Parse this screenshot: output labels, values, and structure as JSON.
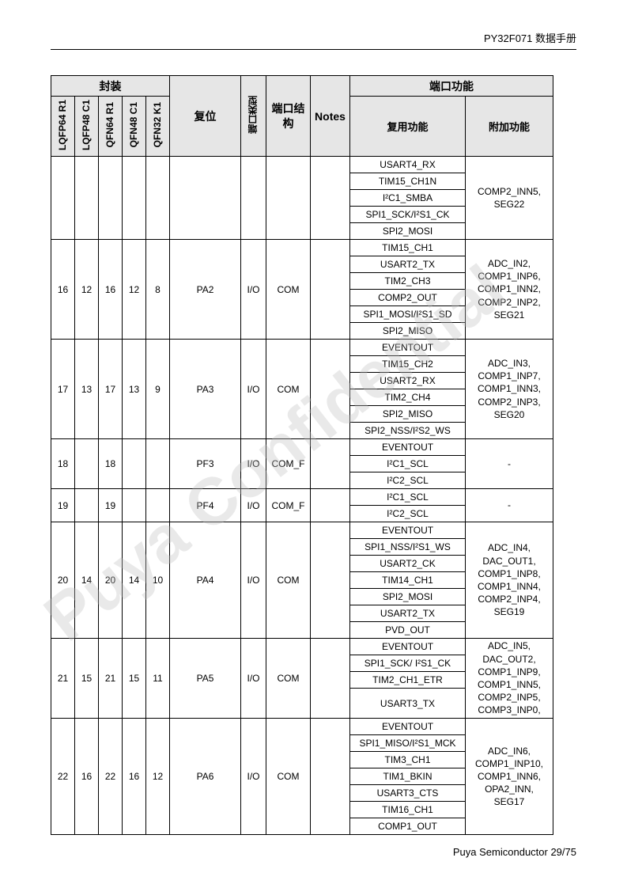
{
  "doc_header": "PY32F071 数据手册",
  "doc_footer": "Puya Semiconductor 29/75",
  "watermark_text": "Puya Confidential",
  "header_group_package": "封装",
  "header_group_port_func": "端口功能",
  "header_package_cols": [
    "LQFP64 R1",
    "LQFP48 C1",
    "QFN64 R1",
    "QFN48 C1",
    "QFN32 K1"
  ],
  "header_reset": "复位",
  "header_type": "端口类型",
  "header_struct": "端口结构",
  "header_notes": "Notes",
  "header_alt": "复用功能",
  "header_addl": "附加功能",
  "carry_alt": [
    "USART4_RX",
    "TIM15_CH1N",
    "I²C1_SMBA",
    "SPI1_SCK/I²S1_CK",
    "SPI2_MOSI"
  ],
  "carry_addl": "COMP2_INN5, SEG22",
  "pins": [
    {
      "pkg": [
        "16",
        "12",
        "16",
        "12",
        "8"
      ],
      "reset": "PA2",
      "type": "I/O",
      "struct": "COM",
      "notes": "",
      "alt": [
        "TIM15_CH1",
        "USART2_TX",
        "TIM2_CH3",
        "COMP2_OUT",
        "SPI1_MOSI/I²S1_SD",
        "SPI2_MISO"
      ],
      "addl": "ADC_IN2, COMP1_INP6, COMP1_INN2, COMP2_INP2, SEG21"
    },
    {
      "pkg": [
        "17",
        "13",
        "17",
        "13",
        "9"
      ],
      "reset": "PA3",
      "type": "I/O",
      "struct": "COM",
      "notes": "",
      "alt": [
        "EVENTOUT",
        "TIM15_CH2",
        "USART2_RX",
        "TIM2_CH4",
        "SPI2_MISO",
        "SPI2_NSS/I²S2_WS"
      ],
      "addl": "ADC_IN3, COMP1_INP7, COMP1_INN3, COMP2_INP3, SEG20"
    },
    {
      "pkg": [
        "18",
        "",
        "18",
        "",
        ""
      ],
      "reset": "PF3",
      "type": "I/O",
      "struct": "COM_F",
      "notes": "",
      "alt": [
        "EVENTOUT",
        "I²C1_SCL",
        "I²C2_SCL"
      ],
      "addl": "-"
    },
    {
      "pkg": [
        "19",
        "",
        "19",
        "",
        ""
      ],
      "reset": "PF4",
      "type": "I/O",
      "struct": "COM_F",
      "notes": "",
      "alt": [
        "I²C1_SCL",
        "I²C2_SCL"
      ],
      "addl": "-"
    },
    {
      "pkg": [
        "20",
        "14",
        "20",
        "14",
        "10"
      ],
      "reset": "PA4",
      "type": "I/O",
      "struct": "COM",
      "notes": "",
      "alt": [
        "EVENTOUT",
        "SPI1_NSS/I²S1_WS",
        "USART2_CK",
        "TIM14_CH1",
        "SPI2_MOSI",
        "USART2_TX",
        "PVD_OUT"
      ],
      "addl": "ADC_IN4, DAC_OUT1, COMP1_INP8, COMP1_INN4, COMP2_INP4, SEG19"
    },
    {
      "pkg": [
        "21",
        "15",
        "21",
        "15",
        "11"
      ],
      "reset": "PA5",
      "type": "I/O",
      "struct": "COM",
      "notes": "",
      "alt": [
        "EVENTOUT",
        "SPI1_SCK/ I²S1_CK",
        "TIM2_CH1_ETR",
        "USART3_TX"
      ],
      "alt_heights": [
        21,
        21,
        21,
        38
      ],
      "addl": "ADC_IN5, DAC_OUT2, COMP1_INP9, COMP1_INN5, COMP2_INP5, COMP3_INP0,"
    },
    {
      "pkg": [
        "22",
        "16",
        "22",
        "16",
        "12"
      ],
      "reset": "PA6",
      "type": "I/O",
      "struct": "COM",
      "notes": "",
      "alt": [
        "EVENTOUT",
        "SPI1_MISO/I²S1_MCK",
        "TIM3_CH1",
        "TIM1_BKIN",
        "USART3_CTS",
        "TIM16_CH1",
        "COMP1_OUT"
      ],
      "addl": "ADC_IN6, COMP1_INP10, COMP1_INN6, OPA2_INN, SEG17"
    }
  ]
}
